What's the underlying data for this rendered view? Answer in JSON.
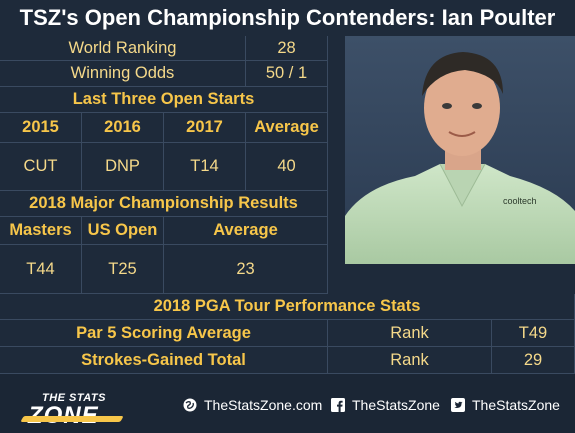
{
  "title": "TSZ's Open Championship Contenders: Ian Poulter",
  "info": [
    {
      "label": "World Ranking",
      "value": "28"
    },
    {
      "label": "Winning Odds",
      "value": "50 / 1"
    }
  ],
  "open_starts": {
    "heading": "Last Three Open Starts",
    "columns": [
      "2015",
      "2016",
      "2017",
      "Average"
    ],
    "values": [
      "CUT",
      "DNP",
      "T14",
      "40"
    ]
  },
  "majors": {
    "heading": "2018 Major Championship Results",
    "columns": [
      "Masters",
      "US Open",
      "Average"
    ],
    "values": [
      "T44",
      "T25",
      "23"
    ]
  },
  "pga": {
    "heading": "2018 PGA Tour Performance Stats",
    "rows": [
      {
        "label": "Par 5 Scoring Average",
        "rank_label": "Rank",
        "rank": "T49"
      },
      {
        "label": "Strokes-Gained Total",
        "rank_label": "Rank",
        "rank": "29"
      }
    ]
  },
  "footer": {
    "logo_top": "THE STATS",
    "logo_bottom": "ZONE",
    "website": "TheStatsZone.com",
    "facebook": "TheStatsZone",
    "twitter": "TheStatsZone"
  },
  "photo_shirt_text": "cooltech",
  "colors": {
    "background": "#1e2a3a",
    "heading": "#f7c64a",
    "value": "#f5d98a"
  }
}
